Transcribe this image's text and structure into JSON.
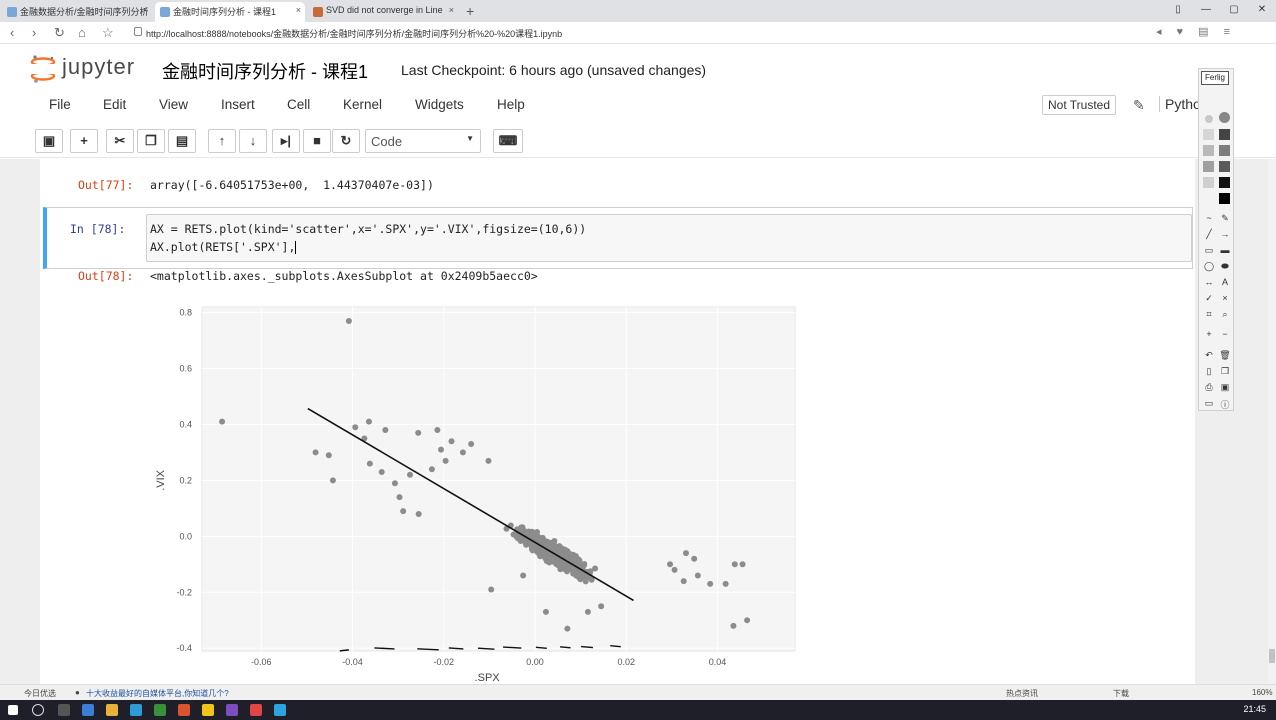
{
  "browser": {
    "tabs": [
      {
        "label": "金融数据分析/金融时间序列分析"
      },
      {
        "label": "金融时间序列分析 - 课程1"
      },
      {
        "label": "SVD did not converge in Line"
      }
    ],
    "url": "http://localhost:8888/notebooks/金融数据分析/金融时间序列分析/金融时间序列分析%20-%20课程1.ipynb"
  },
  "jupyter": {
    "logo_text": "jupyter",
    "notebook_title": "金融时间序列分析 - 课程1",
    "checkpoint": "Last Checkpoint: 6 hours ago (unsaved changes)",
    "menu": [
      "File",
      "Edit",
      "View",
      "Insert",
      "Cell",
      "Kernel",
      "Widgets",
      "Help"
    ],
    "trust": "Not Trusted",
    "kernel": "Pytho",
    "cell_type": "Code"
  },
  "cells": {
    "out77_prompt": "Out[77]:",
    "out77_text": "array([-6.64051753e+00,  1.44370407e-03])",
    "in78_prompt": "In  [78]:",
    "in78_line1": "AX = RETS.plot(kind='scatter',x='.SPX',y='.VIX',figsize=(10,6))",
    "in78_line2": "AX.plot(RETS['.SPX'],",
    "out78_prompt": "Out[78]:",
    "out78_text": "<matplotlib.axes._subplots.AxesSubplot at 0x2409b5aecc0>"
  },
  "annotation": {
    "title": "Ferlig"
  },
  "notif": {
    "left": "今日优选",
    "news": "十大收益最好的自媒体平台,你知道几个?",
    "right": "热点资讯",
    "download": "下载",
    "zoom": "160%"
  },
  "taskbar": {
    "time": "21:45"
  },
  "chart_data": {
    "type": "scatter",
    "xlabel": ".SPX",
    "ylabel": ".VIX",
    "xlim": [
      -0.073,
      0.057
    ],
    "ylim": [
      -0.41,
      0.82
    ],
    "xticks": [
      "-0.06",
      "-0.04",
      "-0.02",
      "0.00",
      "0.02",
      "0.04"
    ],
    "xtick_values": [
      -0.06,
      -0.04,
      -0.02,
      0.0,
      0.02,
      0.04
    ],
    "yticks": [
      "0.8",
      "0.6",
      "0.4",
      "0.2",
      "0.0",
      "-0.2",
      "-0.4"
    ],
    "ytick_values": [
      0.8,
      0.6,
      0.4,
      0.2,
      0.0,
      -0.2,
      -0.4
    ],
    "point_color": "#8c8c8c",
    "line_color": "#111111",
    "outliers": [
      [
        -0.0408,
        0.77
      ],
      [
        -0.0686,
        0.41
      ],
      [
        -0.0481,
        0.3
      ],
      [
        -0.0452,
        0.29
      ],
      [
        -0.0443,
        0.2
      ],
      [
        -0.0394,
        0.39
      ],
      [
        -0.0374,
        0.35
      ],
      [
        -0.0364,
        0.41
      ],
      [
        -0.0362,
        0.26
      ],
      [
        -0.0336,
        0.23
      ],
      [
        -0.0328,
        0.38
      ],
      [
        -0.0307,
        0.19
      ],
      [
        -0.0297,
        0.14
      ],
      [
        -0.0289,
        0.09
      ],
      [
        -0.0274,
        0.22
      ],
      [
        -0.0256,
        0.37
      ],
      [
        -0.0255,
        0.08
      ],
      [
        -0.0226,
        0.24
      ],
      [
        -0.0214,
        0.38
      ],
      [
        -0.0206,
        0.31
      ],
      [
        -0.0196,
        0.27
      ],
      [
        -0.0183,
        0.34
      ],
      [
        -0.0158,
        0.3
      ],
      [
        -0.014,
        0.33
      ],
      [
        -0.0102,
        0.27
      ],
      [
        0.0296,
        -0.1
      ],
      [
        0.0306,
        -0.12
      ],
      [
        0.0331,
        -0.06
      ],
      [
        0.0326,
        -0.16
      ],
      [
        0.0349,
        -0.08
      ],
      [
        0.0357,
        -0.14
      ],
      [
        0.0384,
        -0.17
      ],
      [
        0.0418,
        -0.17
      ],
      [
        0.0435,
        -0.32
      ],
      [
        0.0438,
        -0.1
      ],
      [
        0.0455,
        -0.1
      ],
      [
        0.0465,
        -0.3
      ],
      [
        0.0116,
        -0.27
      ],
      [
        0.0145,
        -0.25
      ],
      [
        0.0071,
        -0.33
      ],
      [
        0.0024,
        -0.27
      ],
      [
        -0.0096,
        -0.19
      ],
      [
        -0.0026,
        -0.14
      ]
    ],
    "regression": {
      "x": [
        -0.0498,
        0.0216
      ],
      "y": [
        0.457,
        -0.229
      ]
    },
    "bottom_line_segments": [
      [
        -0.0408,
        -0.0428,
        -0.406
      ],
      [
        -0.0352,
        -0.0308,
        -0.399
      ],
      [
        -0.0258,
        -0.0211,
        -0.402
      ],
      [
        -0.0189,
        -0.0157,
        -0.399
      ],
      [
        -0.0125,
        -0.0089,
        -0.4
      ],
      [
        -0.007,
        -0.003,
        -0.396
      ],
      [
        0.0002,
        0.0026,
        -0.397
      ],
      [
        0.0055,
        0.0078,
        -0.395
      ],
      [
        0.0101,
        0.0127,
        -0.394
      ],
      [
        0.0165,
        0.0188,
        -0.391
      ]
    ]
  }
}
